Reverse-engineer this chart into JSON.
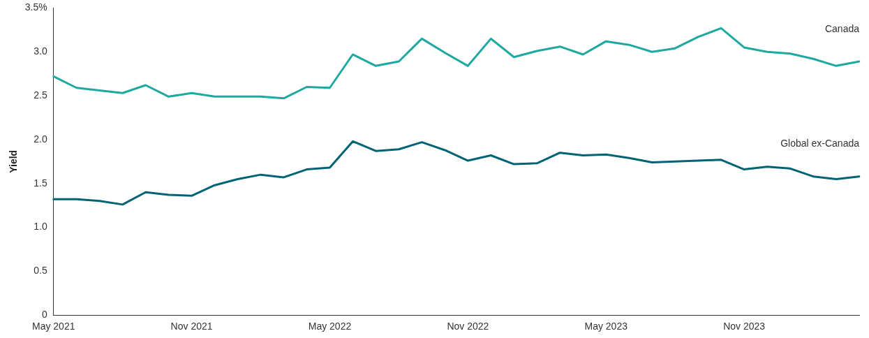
{
  "chart_data": {
    "type": "line",
    "ylabel": "Yield",
    "categories": [
      "May 2021",
      null,
      null,
      null,
      null,
      null,
      "Nov 2021",
      null,
      null,
      null,
      null,
      null,
      "May 2022",
      null,
      null,
      null,
      null,
      null,
      "Nov 2022",
      null,
      null,
      null,
      null,
      null,
      "May 2023",
      null,
      null,
      null,
      null,
      null,
      "Nov 2023",
      null,
      null,
      null,
      null,
      null
    ],
    "series": [
      {
        "name": "Canada",
        "color": "#1fa8a0",
        "values": [
          2.72,
          2.59,
          2.56,
          2.53,
          2.62,
          2.49,
          2.53,
          2.49,
          2.49,
          2.49,
          2.47,
          2.6,
          2.59,
          2.97,
          2.84,
          2.89,
          3.15,
          2.99,
          2.84,
          3.15,
          2.94,
          3.01,
          3.06,
          2.97,
          3.12,
          3.08,
          3.0,
          3.04,
          3.17,
          3.27,
          3.05,
          3.0,
          2.98,
          2.92,
          2.84,
          2.89
        ]
      },
      {
        "name": "Global ex-Canada",
        "color": "#006476",
        "values": [
          1.32,
          1.32,
          1.3,
          1.26,
          1.4,
          1.37,
          1.36,
          1.48,
          1.55,
          1.6,
          1.57,
          1.66,
          1.68,
          1.98,
          1.87,
          1.89,
          1.97,
          1.88,
          1.76,
          1.82,
          1.72,
          1.73,
          1.85,
          1.82,
          1.83,
          1.79,
          1.74,
          1.75,
          1.76,
          1.77,
          1.66,
          1.69,
          1.67,
          1.58,
          1.55,
          1.58
        ]
      }
    ],
    "ylim": [
      0,
      3.5
    ],
    "yticks": [
      0,
      0.5,
      {
        "value": 1,
        "label": "1.0"
      },
      1.5,
      {
        "value": 2,
        "label": "2.0"
      },
      2.5,
      {
        "value": 3,
        "label": "3.0"
      },
      {
        "value": 3.5,
        "label": "3.5%"
      }
    ],
    "grid": false,
    "legend": false,
    "marker": "none",
    "line_style": "solid"
  }
}
